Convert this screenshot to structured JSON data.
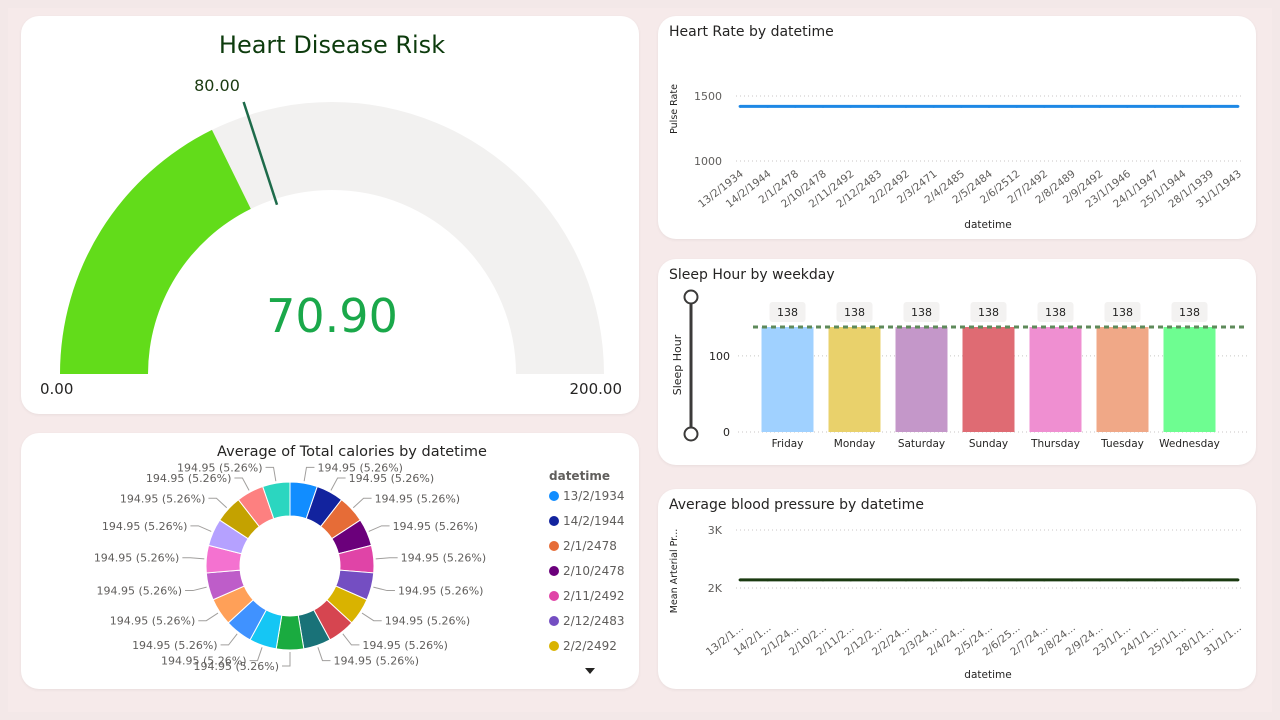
{
  "colors": {
    "gauge_fill": "#62dc1a",
    "gauge_track": "#f2f1f0",
    "gauge_target": "#1e6b4a",
    "gauge_value": "#1aa84a",
    "line_blue": "#1e88e5",
    "line_dark": "#1a3a10",
    "target_dash": "#5e8a5a"
  },
  "gauge": {
    "title": "Heart Disease Risk",
    "value": 70.9,
    "value_label": "70.90",
    "min": 0,
    "max": 200,
    "min_label": "0.00",
    "max_label": "200.00",
    "target": 80,
    "target_label": "80.00"
  },
  "heart_rate": {
    "title": "Heart Rate by datetime",
    "ylabel": "Pulse Rate",
    "xlabel": "datetime",
    "y_ticks": [
      "1500",
      "1000"
    ],
    "x_labels": [
      "13/2/1934",
      "14/2/1944",
      "2/1/2478",
      "2/10/2478",
      "2/11/2492",
      "2/12/2483",
      "2/2/2492",
      "2/3/2471",
      "2/4/2485",
      "2/5/2484",
      "2/6/2512",
      "2/7/2492",
      "2/8/2489",
      "2/9/2492",
      "23/1/1946",
      "24/1/1947",
      "25/1/1944",
      "28/1/1939",
      "31/1/1943"
    ]
  },
  "sleep": {
    "title": "Sleep Hour by weekday",
    "ylabel": "Sleep Hour",
    "y_ticks": [
      "100",
      "0"
    ]
  },
  "blood_pressure": {
    "title": "Average blood pressure by datetime",
    "ylabel": "Mean Arterial Pr...",
    "xlabel": "datetime",
    "y_ticks": [
      "3K",
      "2K"
    ],
    "x_labels": [
      "13/2/1...",
      "14/2/1...",
      "2/1/24...",
      "2/10/2...",
      "2/11/2...",
      "2/12/2...",
      "2/2/24...",
      "2/3/24...",
      "2/4/24...",
      "2/5/24...",
      "2/6/25...",
      "2/7/24...",
      "2/8/24...",
      "2/9/24...",
      "23/1/1...",
      "24/1/1...",
      "25/1/1...",
      "28/1/1...",
      "31/1/1..."
    ]
  },
  "calories": {
    "title": "Average of Total calories by datetime",
    "legend_title": "datetime",
    "slice_label": "194.95 (5.26%)",
    "legend_items": [
      {
        "label": "13/2/1934",
        "color": "#118dff"
      },
      {
        "label": "14/2/1944",
        "color": "#12239e"
      },
      {
        "label": "2/1/2478",
        "color": "#e66c37"
      },
      {
        "label": "2/10/2478",
        "color": "#6b007b"
      },
      {
        "label": "2/11/2492",
        "color": "#e044a7"
      },
      {
        "label": "2/12/2483",
        "color": "#744ec2"
      },
      {
        "label": "2/2/2492",
        "color": "#d9b300"
      }
    ]
  },
  "chart_data": [
    {
      "type": "gauge",
      "title": "Heart Disease Risk",
      "value": 70.9,
      "min": 0,
      "max": 200,
      "target": 80
    },
    {
      "type": "line",
      "title": "Heart Rate by datetime",
      "xlabel": "datetime",
      "ylabel": "Pulse Rate",
      "x": [
        "13/2/1934",
        "14/2/1944",
        "2/1/2478",
        "2/10/2478",
        "2/11/2492",
        "2/12/2483",
        "2/2/2492",
        "2/3/2471",
        "2/4/2485",
        "2/5/2484",
        "2/6/2512",
        "2/7/2492",
        "2/8/2489",
        "2/9/2492",
        "23/1/1946",
        "24/1/1947",
        "25/1/1944",
        "28/1/1939",
        "31/1/1943"
      ],
      "y": [
        1420,
        1420,
        1420,
        1420,
        1420,
        1420,
        1420,
        1420,
        1420,
        1420,
        1420,
        1420,
        1420,
        1420,
        1420,
        1420,
        1420,
        1420,
        1420
      ],
      "ylim": [
        1000,
        1500
      ],
      "grid": true
    },
    {
      "type": "bar",
      "title": "Sleep Hour by weekday",
      "ylabel": "Sleep Hour",
      "categories": [
        "Friday",
        "Monday",
        "Saturday",
        "Sunday",
        "Thursday",
        "Tuesday",
        "Wednesday"
      ],
      "values": [
        138,
        138,
        138,
        138,
        138,
        138,
        138
      ],
      "colors": [
        "#a0d1ff",
        "#e9d16b",
        "#c497c9",
        "#df6b73",
        "#ef8fd1",
        "#f0a887",
        "#6efd91"
      ],
      "data_labels": [
        "138",
        "138",
        "138",
        "138",
        "138",
        "138",
        "138"
      ],
      "reference_line": 138,
      "ylim": [
        0,
        138
      ]
    },
    {
      "type": "line",
      "title": "Average blood pressure by datetime",
      "xlabel": "datetime",
      "ylabel": "Mean Arterial Pr...",
      "x": [
        "13/2/1...",
        "14/2/1...",
        "2/1/24...",
        "2/10/2...",
        "2/11/2...",
        "2/12/2...",
        "2/2/24...",
        "2/3/24...",
        "2/4/24...",
        "2/5/24...",
        "2/6/25...",
        "2/7/24...",
        "2/8/24...",
        "2/9/24...",
        "23/1/1...",
        "24/1/1...",
        "25/1/1...",
        "28/1/1...",
        "31/1/1..."
      ],
      "y": [
        2140,
        2140,
        2140,
        2140,
        2140,
        2140,
        2140,
        2140,
        2140,
        2140,
        2140,
        2140,
        2140,
        2140,
        2140,
        2140,
        2140,
        2140,
        2140
      ],
      "ylim": [
        2000,
        3000
      ],
      "grid": true
    },
    {
      "type": "pie",
      "title": "Average of Total calories by datetime",
      "legend_title": "datetime",
      "donut": true,
      "values": [
        194.95,
        194.95,
        194.95,
        194.95,
        194.95,
        194.95,
        194.95,
        194.95,
        194.95,
        194.95,
        194.95,
        194.95,
        194.95,
        194.95,
        194.95,
        194.95,
        194.95,
        194.95,
        194.95
      ],
      "labels": [
        "194.95 (5.26%)",
        "194.95 (5.26%)",
        "194.95 (5.26%)",
        "194.95 (5.26%)",
        "194.95 (5.26%)",
        "194.95 (5.26%)",
        "194.95 (5.26%)",
        "194.95 (5.26%)",
        "194.95 (5.26%)",
        "194.95 (5.26%)",
        "194.95 (5.26%)",
        "194.95 (5.26%)",
        "194.95 (5.26%)",
        "194.95 (5.26%)",
        "194.95 (5.26%)",
        "194.95 (5.26%)",
        "194.95 (5.26%)",
        "194.95 (5.26%)",
        "194.95 (5.26%)"
      ],
      "colors": [
        "#118dff",
        "#12239e",
        "#e66c37",
        "#6b007b",
        "#e044a7",
        "#744ec2",
        "#d9b300",
        "#d64550",
        "#197278",
        "#1aab40",
        "#15c6f4",
        "#4092ff",
        "#ffa058",
        "#be5dc9",
        "#f472d0",
        "#b5a1ff",
        "#c4a200",
        "#fd8080",
        "#2bd6c0"
      ],
      "legend_placement": "right"
    }
  ]
}
